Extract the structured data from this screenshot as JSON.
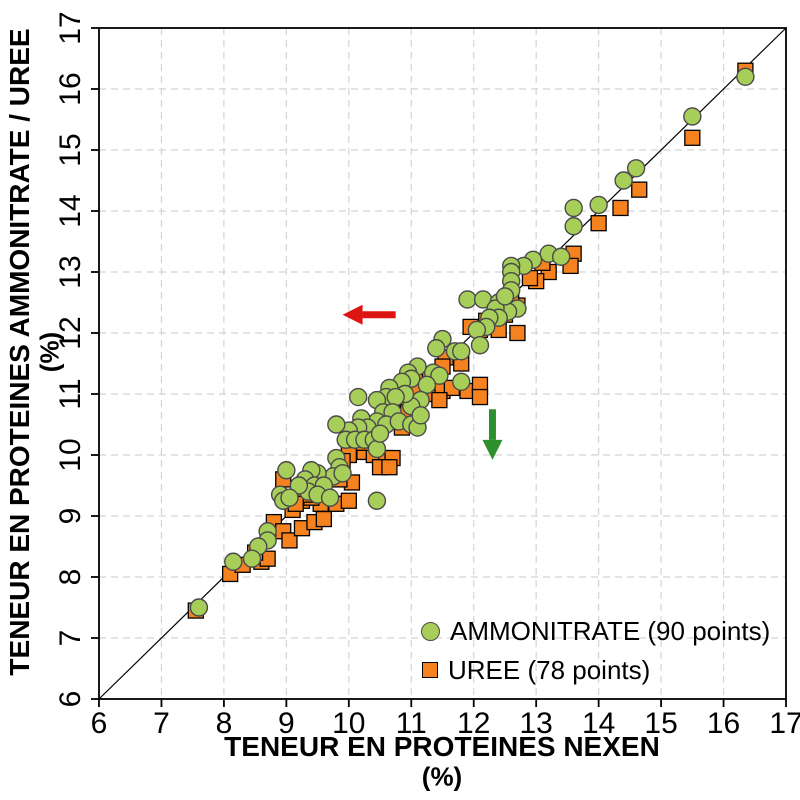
{
  "chart_data": {
    "type": "scatter",
    "xlabel": "TENEUR EN PROTEINES NEXEN",
    "xunit": "(%)",
    "ylabel": "TENEUR EN PROTEINES AMMONITRATE / UREE",
    "yunit": "(%)",
    "xlim": [
      6,
      17
    ],
    "ylim": [
      6,
      17
    ],
    "xticks": [
      6,
      7,
      8,
      9,
      10,
      11,
      12,
      13,
      14,
      15,
      16,
      17
    ],
    "yticks": [
      6,
      7,
      8,
      9,
      10,
      11,
      12,
      13,
      14,
      15,
      16,
      17
    ],
    "grid": true,
    "identity_line": true,
    "legend_position": "bottom-right",
    "series": [
      {
        "name": "AMMONITRATE (90 points)",
        "marker": "circle",
        "color": "#a6ce58",
        "stroke": "#4a4a4a",
        "points": [
          [
            16.35,
            16.2
          ],
          [
            15.5,
            15.55
          ],
          [
            14.6,
            14.7
          ],
          [
            14.4,
            14.5
          ],
          [
            14.0,
            14.1
          ],
          [
            13.6,
            14.05
          ],
          [
            13.6,
            13.75
          ],
          [
            13.2,
            13.3
          ],
          [
            13.4,
            13.25
          ],
          [
            12.95,
            13.2
          ],
          [
            12.8,
            13.1
          ],
          [
            12.6,
            13.1
          ],
          [
            12.6,
            13.0
          ],
          [
            12.6,
            12.85
          ],
          [
            12.6,
            12.7
          ],
          [
            11.9,
            12.55
          ],
          [
            12.15,
            12.55
          ],
          [
            12.4,
            12.5
          ],
          [
            12.7,
            12.4
          ],
          [
            12.55,
            12.35
          ],
          [
            12.35,
            12.4
          ],
          [
            12.4,
            12.25
          ],
          [
            12.25,
            12.25
          ],
          [
            12.2,
            12.1
          ],
          [
            12.05,
            12.05
          ],
          [
            12.5,
            12.6
          ],
          [
            12.1,
            11.8
          ],
          [
            11.5,
            11.9
          ],
          [
            11.4,
            11.75
          ],
          [
            11.7,
            11.7
          ],
          [
            11.8,
            11.7
          ],
          [
            11.35,
            11.35
          ],
          [
            11.1,
            11.45
          ],
          [
            10.95,
            11.35
          ],
          [
            11.0,
            11.25
          ],
          [
            10.85,
            11.2
          ],
          [
            11.45,
            11.3
          ],
          [
            11.8,
            11.2
          ],
          [
            11.25,
            11.15
          ],
          [
            11.15,
            10.9
          ],
          [
            11.0,
            10.8
          ],
          [
            10.9,
            11.0
          ],
          [
            10.65,
            11.1
          ],
          [
            10.6,
            10.95
          ],
          [
            10.75,
            10.95
          ],
          [
            10.15,
            10.95
          ],
          [
            10.45,
            10.9
          ],
          [
            10.55,
            10.7
          ],
          [
            10.7,
            10.7
          ],
          [
            10.45,
            10.55
          ],
          [
            10.6,
            10.5
          ],
          [
            10.8,
            10.55
          ],
          [
            11.0,
            10.5
          ],
          [
            11.1,
            10.45
          ],
          [
            11.15,
            10.65
          ],
          [
            10.2,
            10.6
          ],
          [
            10.3,
            10.45
          ],
          [
            10.15,
            10.45
          ],
          [
            10.0,
            10.4
          ],
          [
            9.95,
            10.25
          ],
          [
            10.1,
            10.25
          ],
          [
            10.25,
            10.25
          ],
          [
            10.4,
            10.25
          ],
          [
            10.45,
            10.1
          ],
          [
            10.5,
            10.35
          ],
          [
            9.8,
            10.5
          ],
          [
            9.8,
            9.95
          ],
          [
            9.85,
            9.8
          ],
          [
            9.75,
            9.65
          ],
          [
            9.9,
            9.7
          ],
          [
            9.5,
            9.7
          ],
          [
            9.4,
            9.75
          ],
          [
            9.3,
            9.6
          ],
          [
            9.45,
            9.5
          ],
          [
            9.6,
            9.5
          ],
          [
            9.35,
            9.4
          ],
          [
            9.5,
            9.35
          ],
          [
            9.7,
            9.3
          ],
          [
            10.45,
            9.25
          ],
          [
            9.0,
            9.75
          ],
          [
            9.2,
            9.5
          ],
          [
            8.9,
            9.35
          ],
          [
            8.95,
            9.25
          ],
          [
            9.05,
            9.3
          ],
          [
            8.7,
            8.75
          ],
          [
            8.7,
            8.6
          ],
          [
            8.55,
            8.5
          ],
          [
            8.45,
            8.3
          ],
          [
            8.15,
            8.25
          ],
          [
            7.6,
            7.5
          ]
        ]
      },
      {
        "name": "UREE (78 points)",
        "marker": "square",
        "color": "#f5821f",
        "stroke": "#000000",
        "points": [
          [
            16.35,
            16.3
          ],
          [
            15.5,
            15.2
          ],
          [
            14.65,
            14.35
          ],
          [
            14.35,
            14.05
          ],
          [
            14.0,
            13.8
          ],
          [
            13.6,
            13.3
          ],
          [
            13.55,
            13.1
          ],
          [
            13.2,
            13.0
          ],
          [
            13.0,
            12.85
          ],
          [
            12.7,
            12.45
          ],
          [
            11.95,
            12.1
          ],
          [
            12.1,
            12.05
          ],
          [
            12.4,
            12.05
          ],
          [
            12.7,
            12.0
          ],
          [
            11.2,
            11.15
          ],
          [
            11.8,
            11.5
          ],
          [
            11.55,
            11.6
          ],
          [
            11.35,
            11.0
          ],
          [
            11.5,
            11.05
          ],
          [
            11.65,
            11.1
          ],
          [
            11.45,
            10.9
          ],
          [
            11.9,
            11.05
          ],
          [
            12.1,
            11.15
          ],
          [
            12.1,
            10.95
          ],
          [
            10.8,
            10.75
          ],
          [
            10.85,
            10.45
          ],
          [
            10.1,
            10.1
          ],
          [
            10.25,
            10.05
          ],
          [
            10.4,
            10.0
          ],
          [
            10.6,
            9.95
          ],
          [
            10.7,
            9.95
          ],
          [
            10.5,
            9.8
          ],
          [
            10.65,
            9.8
          ],
          [
            10.05,
            9.55
          ],
          [
            9.85,
            9.6
          ],
          [
            9.8,
            9.2
          ],
          [
            10.0,
            9.25
          ],
          [
            9.25,
            9.25
          ],
          [
            9.55,
            9.2
          ],
          [
            8.95,
            9.6
          ],
          [
            9.1,
            9.1
          ],
          [
            8.8,
            8.9
          ],
          [
            8.95,
            8.75
          ],
          [
            9.05,
            8.6
          ],
          [
            9.25,
            8.8
          ],
          [
            9.45,
            8.9
          ],
          [
            9.6,
            8.95
          ],
          [
            8.6,
            8.25
          ],
          [
            8.7,
            8.3
          ],
          [
            8.1,
            8.05
          ],
          [
            7.55,
            7.45
          ],
          [
            10.3,
            10.3
          ],
          [
            10.5,
            10.5
          ],
          [
            10.2,
            10.2
          ],
          [
            9.5,
            9.4
          ],
          [
            9.6,
            9.55
          ],
          [
            9.4,
            9.3
          ],
          [
            10.9,
            10.9
          ],
          [
            11.0,
            11.05
          ],
          [
            11.1,
            11.2
          ],
          [
            10.7,
            10.8
          ],
          [
            10.95,
            10.7
          ],
          [
            11.3,
            11.3
          ],
          [
            11.5,
            11.45
          ],
          [
            12.2,
            12.2
          ],
          [
            12.5,
            12.3
          ],
          [
            12.6,
            12.6
          ],
          [
            12.9,
            12.9
          ],
          [
            13.1,
            13.15
          ],
          [
            10.0,
            10.0
          ],
          [
            9.9,
            9.9
          ],
          [
            9.3,
            9.35
          ],
          [
            9.15,
            9.2
          ],
          [
            8.5,
            8.4
          ],
          [
            8.3,
            8.2
          ],
          [
            10.15,
            10.3
          ],
          [
            10.55,
            10.6
          ],
          [
            11.05,
            11.1
          ]
        ]
      }
    ],
    "annotations": [
      {
        "type": "arrow",
        "name": "red-left-arrow",
        "color": "#dd1512",
        "from": [
          10.75,
          12.3
        ],
        "to": [
          9.9,
          12.3
        ]
      },
      {
        "type": "arrow",
        "name": "green-down-arrow",
        "color": "#2e8f2e",
        "from": [
          12.3,
          10.75
        ],
        "to": [
          12.3,
          9.92
        ]
      }
    ],
    "style": {
      "grid_color": "#d4d4d4",
      "frame_color": "#000000",
      "identity_color": "#000000"
    }
  }
}
